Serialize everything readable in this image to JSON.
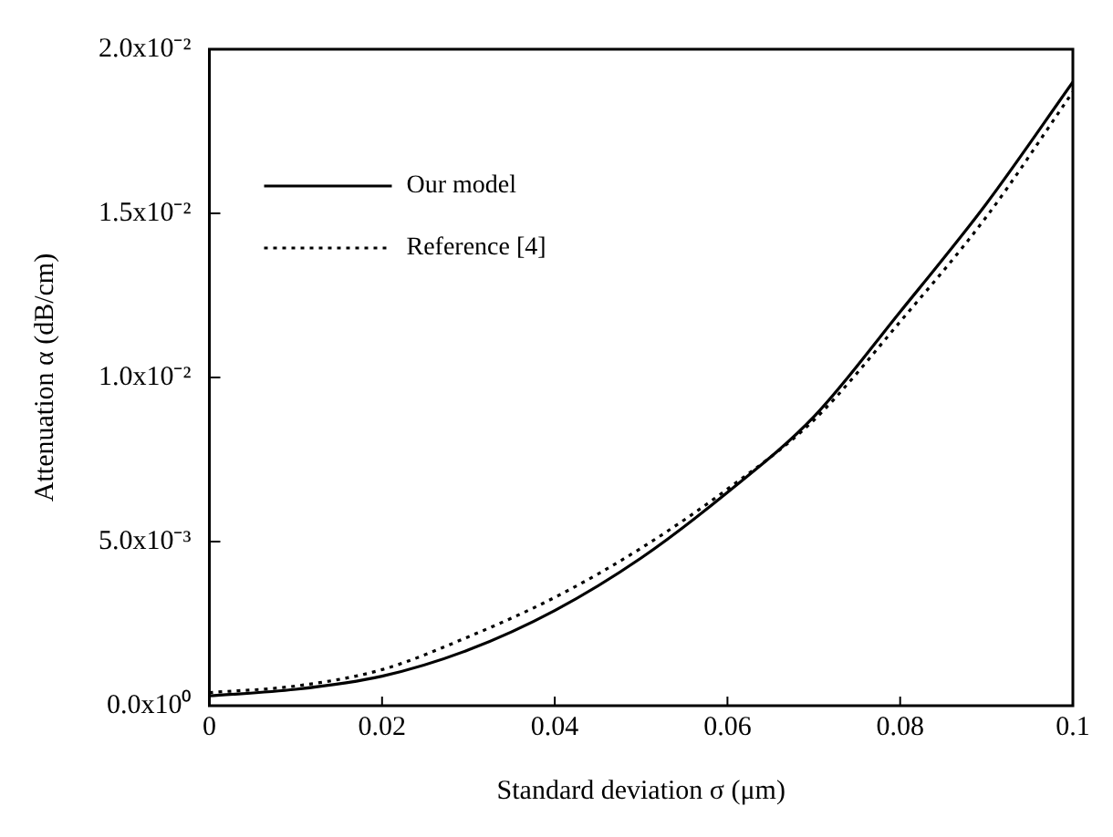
{
  "chart_data": {
    "type": "line",
    "xlabel": "Standard deviation σ (μm)",
    "ylabel": "Attenuation α (dB/cm)",
    "x": [
      0,
      0.01,
      0.02,
      0.03,
      0.04,
      0.05,
      0.06,
      0.07,
      0.08,
      0.09,
      0.1
    ],
    "series": [
      {
        "name": "Our model",
        "color": "#000000",
        "line_style": "solid",
        "values": [
          0.0003,
          0.0005,
          0.0009,
          0.0017,
          0.0029,
          0.0045,
          0.0065,
          0.0088,
          0.012,
          0.0153,
          0.019
        ]
      },
      {
        "name": "Reference [4]",
        "color": "#000000",
        "line_style": "dotted",
        "values": [
          0.0004,
          0.0006,
          0.0011,
          0.0021,
          0.0033,
          0.0048,
          0.0066,
          0.0087,
          0.0117,
          0.0149,
          0.0187
        ]
      }
    ],
    "xlim": [
      0,
      0.1
    ],
    "xticks": [
      0,
      0.02,
      0.04,
      0.06,
      0.08,
      0.1
    ],
    "ylim": [
      0,
      0.02
    ],
    "yticks": [
      {
        "value": 0,
        "label": "0.0x10⁰"
      },
      {
        "value": 0.005,
        "label": "5.0x10⁻³"
      },
      {
        "value": 0.01,
        "label": "1.0x10⁻²"
      },
      {
        "value": 0.015,
        "label": "1.5x10⁻²"
      },
      {
        "value": 0.02,
        "label": "2.0x10⁻²"
      }
    ],
    "grid": false,
    "legend": "top left",
    "marker": "none"
  }
}
